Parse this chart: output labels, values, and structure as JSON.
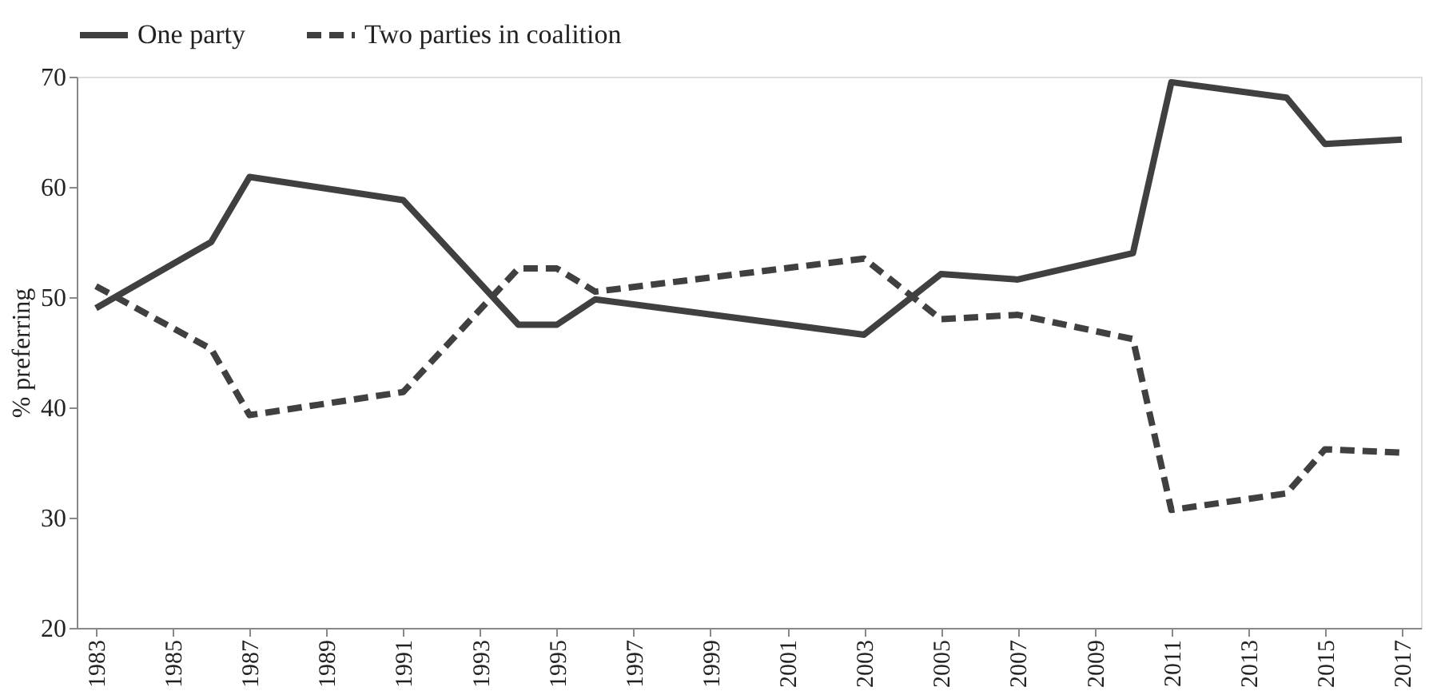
{
  "chart_data": {
    "type": "line",
    "ylabel": "% preferring",
    "x": [
      1983,
      1986,
      1987,
      1991,
      1994,
      1995,
      1996,
      2003,
      2005,
      2007,
      2010,
      2011,
      2014,
      2015,
      2017
    ],
    "series": [
      {
        "name": "One party",
        "color": "#404040",
        "line_style": "solid",
        "values": [
          49.0,
          55.0,
          60.9,
          58.8,
          47.5,
          47.5,
          49.8,
          46.6,
          52.1,
          51.6,
          54.0,
          69.5,
          68.1,
          63.9,
          64.3
        ]
      },
      {
        "name": "Two parties in coalition",
        "color": "#404040",
        "line_style": "dashed",
        "values": [
          51.0,
          45.3,
          39.3,
          41.4,
          52.6,
          52.6,
          50.5,
          53.5,
          48.0,
          48.4,
          46.2,
          30.7,
          32.2,
          36.2,
          35.9
        ]
      }
    ],
    "xlim": [
      1982.5,
      2017.5
    ],
    "xticks": [
      1983,
      1985,
      1987,
      1989,
      1991,
      1993,
      1995,
      1997,
      1999,
      2001,
      2003,
      2005,
      2007,
      2009,
      2011,
      2013,
      2015,
      2017
    ],
    "ylim": [
      20,
      70
    ],
    "yticks": [
      20,
      30,
      40,
      50,
      60,
      70
    ],
    "grid": false,
    "legend": "top",
    "marker": "none"
  }
}
